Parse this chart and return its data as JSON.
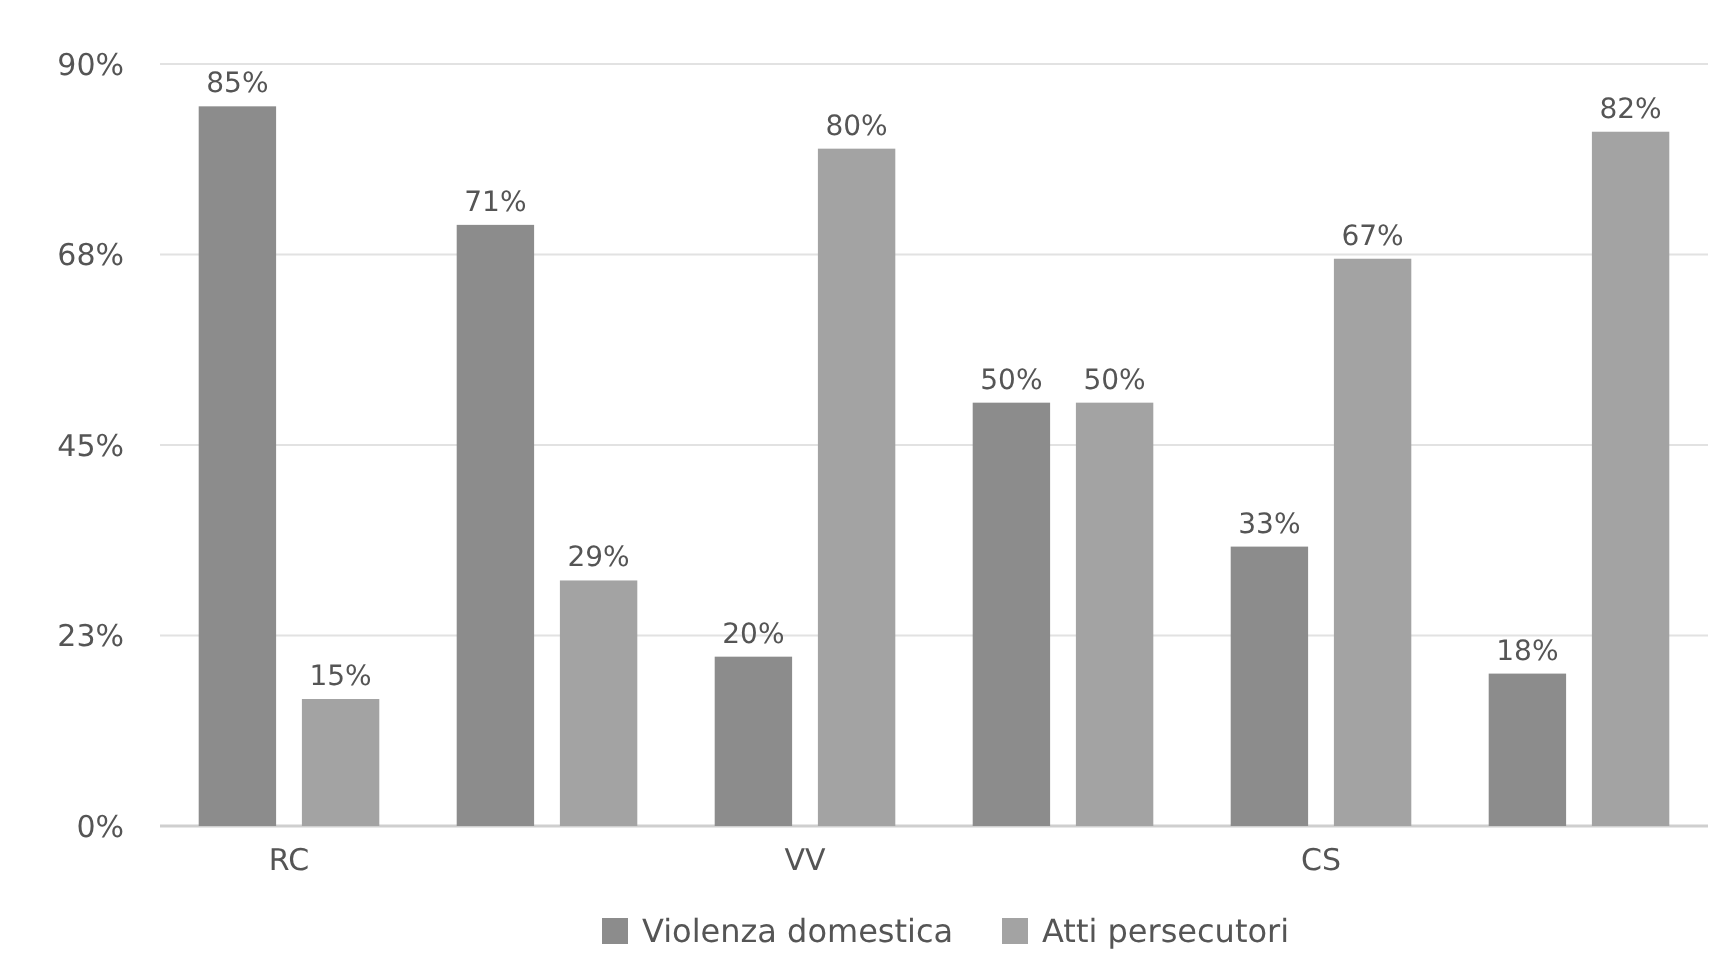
{
  "chart_data": {
    "type": "bar",
    "categories": [
      "RC",
      null,
      "VV",
      null,
      "CS",
      null
    ],
    "series": [
      {
        "name": "Violenza domestica",
        "color": "#8c8c8c",
        "values": [
          85,
          71,
          20,
          50,
          33,
          18
        ],
        "value_labels": [
          "85%",
          "71%",
          "20%",
          "50%",
          "33%",
          "18%"
        ]
      },
      {
        "name": "Atti persecutori",
        "color": "#a3a3a3",
        "values": [
          15,
          29,
          80,
          50,
          67,
          82
        ],
        "value_labels": [
          "15%",
          "29%",
          "80%",
          "50%",
          "67%",
          "82%"
        ]
      }
    ],
    "ylim": [
      0,
      90
    ],
    "yticks": [
      {
        "value": 0,
        "label": "0%"
      },
      {
        "value": 22.5,
        "label": "23%"
      },
      {
        "value": 45,
        "label": "45%"
      },
      {
        "value": 67.5,
        "label": "68%"
      },
      {
        "value": 90,
        "label": "90%"
      }
    ],
    "grid": "y",
    "legend": "bottom"
  }
}
